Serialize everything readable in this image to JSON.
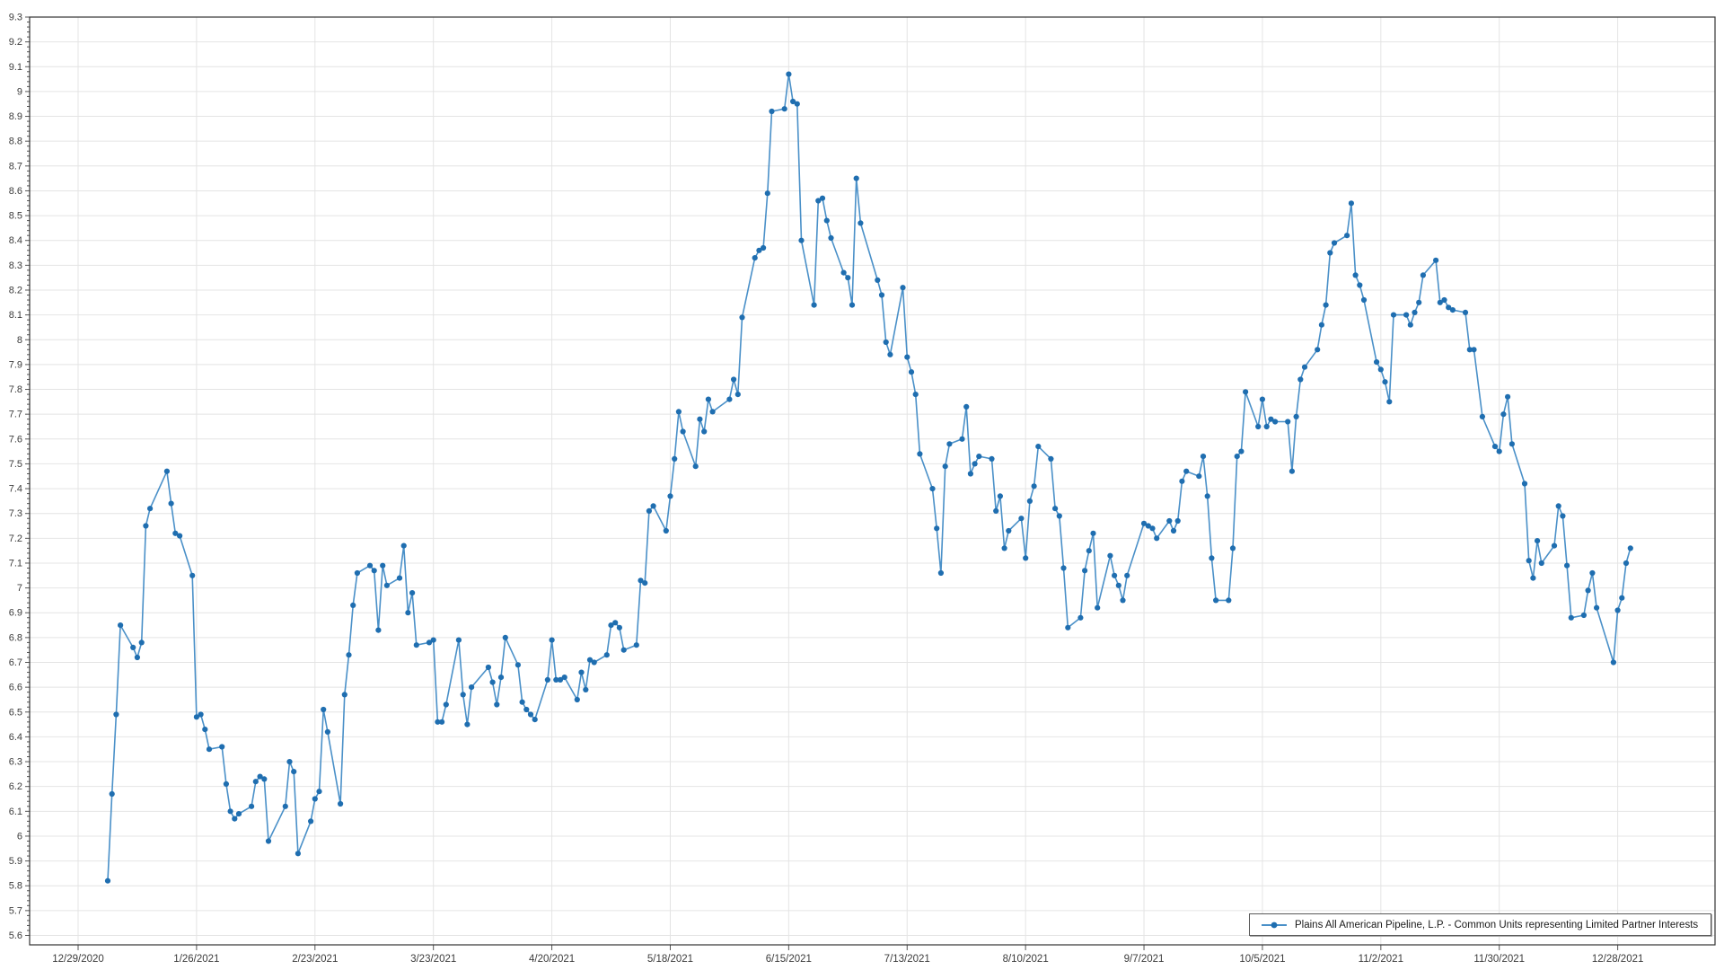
{
  "chart_data": {
    "type": "line",
    "title": "",
    "xlabel": "",
    "ylabel": "",
    "ylim": [
      5.6,
      9.3
    ],
    "ytick_step": 0.1,
    "ytick_minor_step": 0.02,
    "grid": true,
    "legend_position": "bottom-right",
    "x_base_date": "12/29/2020",
    "xtick_labels": [
      "12/29/2020",
      "1/26/2021",
      "2/23/2021",
      "3/23/2021",
      "4/20/2021",
      "5/18/2021",
      "6/15/2021",
      "7/13/2021",
      "8/10/2021",
      "9/7/2021",
      "10/5/2021",
      "11/2/2021",
      "11/30/2021",
      "12/28/2021"
    ],
    "series": [
      {
        "name": "Plains All American Pipeline, L.P. - Common Units representing Limited Partner Interests",
        "color": "#4a90c8",
        "marker_color": "#1f6eb0",
        "points": [
          [
            "1/5/2021",
            5.82
          ],
          [
            "1/6/2021",
            6.17
          ],
          [
            "1/7/2021",
            6.49
          ],
          [
            "1/8/2021",
            6.85
          ],
          [
            "1/11/2021",
            6.76
          ],
          [
            "1/12/2021",
            6.72
          ],
          [
            "1/13/2021",
            6.78
          ],
          [
            "1/14/2021",
            7.25
          ],
          [
            "1/15/2021",
            7.32
          ],
          [
            "1/19/2021",
            7.47
          ],
          [
            "1/20/2021",
            7.34
          ],
          [
            "1/21/2021",
            7.22
          ],
          [
            "1/22/2021",
            7.21
          ],
          [
            "1/25/2021",
            7.05
          ],
          [
            "1/26/2021",
            6.48
          ],
          [
            "1/27/2021",
            6.49
          ],
          [
            "1/28/2021",
            6.43
          ],
          [
            "1/29/2021",
            6.35
          ],
          [
            "2/1/2021",
            6.36
          ],
          [
            "2/2/2021",
            6.21
          ],
          [
            "2/3/2021",
            6.1
          ],
          [
            "2/4/2021",
            6.07
          ],
          [
            "2/5/2021",
            6.09
          ],
          [
            "2/8/2021",
            6.12
          ],
          [
            "2/9/2021",
            6.22
          ],
          [
            "2/10/2021",
            6.24
          ],
          [
            "2/11/2021",
            6.23
          ],
          [
            "2/12/2021",
            5.98
          ],
          [
            "2/16/2021",
            6.12
          ],
          [
            "2/17/2021",
            6.3
          ],
          [
            "2/18/2021",
            6.26
          ],
          [
            "2/19/2021",
            5.93
          ],
          [
            "2/22/2021",
            6.06
          ],
          [
            "2/23/2021",
            6.15
          ],
          [
            "2/24/2021",
            6.18
          ],
          [
            "2/25/2021",
            6.51
          ],
          [
            "2/26/2021",
            6.42
          ],
          [
            "3/1/2021",
            6.13
          ],
          [
            "3/2/2021",
            6.57
          ],
          [
            "3/3/2021",
            6.73
          ],
          [
            "3/4/2021",
            6.93
          ],
          [
            "3/5/2021",
            7.06
          ],
          [
            "3/8/2021",
            7.09
          ],
          [
            "3/9/2021",
            7.07
          ],
          [
            "3/10/2021",
            6.83
          ],
          [
            "3/11/2021",
            7.09
          ],
          [
            "3/12/2021",
            7.01
          ],
          [
            "3/15/2021",
            7.04
          ],
          [
            "3/16/2021",
            7.17
          ],
          [
            "3/17/2021",
            6.9
          ],
          [
            "3/18/2021",
            6.98
          ],
          [
            "3/19/2021",
            6.77
          ],
          [
            "3/22/2021",
            6.78
          ],
          [
            "3/23/2021",
            6.79
          ],
          [
            "3/24/2021",
            6.46
          ],
          [
            "3/25/2021",
            6.46
          ],
          [
            "3/26/2021",
            6.53
          ],
          [
            "3/29/2021",
            6.79
          ],
          [
            "3/30/2021",
            6.57
          ],
          [
            "3/31/2021",
            6.45
          ],
          [
            "4/1/2021",
            6.6
          ],
          [
            "4/5/2021",
            6.68
          ],
          [
            "4/6/2021",
            6.62
          ],
          [
            "4/7/2021",
            6.53
          ],
          [
            "4/8/2021",
            6.64
          ],
          [
            "4/9/2021",
            6.8
          ],
          [
            "4/12/2021",
            6.69
          ],
          [
            "4/13/2021",
            6.54
          ],
          [
            "4/14/2021",
            6.51
          ],
          [
            "4/15/2021",
            6.49
          ],
          [
            "4/16/2021",
            6.47
          ],
          [
            "4/19/2021",
            6.63
          ],
          [
            "4/20/2021",
            6.79
          ],
          [
            "4/21/2021",
            6.63
          ],
          [
            "4/22/2021",
            6.63
          ],
          [
            "4/23/2021",
            6.64
          ],
          [
            "4/26/2021",
            6.55
          ],
          [
            "4/27/2021",
            6.66
          ],
          [
            "4/28/2021",
            6.59
          ],
          [
            "4/29/2021",
            6.71
          ],
          [
            "4/30/2021",
            6.7
          ],
          [
            "5/3/2021",
            6.73
          ],
          [
            "5/4/2021",
            6.85
          ],
          [
            "5/5/2021",
            6.86
          ],
          [
            "5/6/2021",
            6.84
          ],
          [
            "5/7/2021",
            6.75
          ],
          [
            "5/10/2021",
            6.77
          ],
          [
            "5/11/2021",
            7.03
          ],
          [
            "5/12/2021",
            7.02
          ],
          [
            "5/13/2021",
            7.31
          ],
          [
            "5/14/2021",
            7.33
          ],
          [
            "5/17/2021",
            7.23
          ],
          [
            "5/18/2021",
            7.37
          ],
          [
            "5/19/2021",
            7.52
          ],
          [
            "5/20/2021",
            7.71
          ],
          [
            "5/21/2021",
            7.63
          ],
          [
            "5/24/2021",
            7.49
          ],
          [
            "5/25/2021",
            7.68
          ],
          [
            "5/26/2021",
            7.63
          ],
          [
            "5/27/2021",
            7.76
          ],
          [
            "5/28/2021",
            7.71
          ],
          [
            "6/1/2021",
            7.76
          ],
          [
            "6/2/2021",
            7.84
          ],
          [
            "6/3/2021",
            7.78
          ],
          [
            "6/4/2021",
            8.09
          ],
          [
            "6/7/2021",
            8.33
          ],
          [
            "6/8/2021",
            8.36
          ],
          [
            "6/9/2021",
            8.37
          ],
          [
            "6/10/2021",
            8.59
          ],
          [
            "6/11/2021",
            8.92
          ],
          [
            "6/14/2021",
            8.93
          ],
          [
            "6/15/2021",
            9.07
          ],
          [
            "6/16/2021",
            8.96
          ],
          [
            "6/17/2021",
            8.95
          ],
          [
            "6/18/2021",
            8.4
          ],
          [
            "6/21/2021",
            8.14
          ],
          [
            "6/22/2021",
            8.56
          ],
          [
            "6/23/2021",
            8.57
          ],
          [
            "6/24/2021",
            8.48
          ],
          [
            "6/25/2021",
            8.41
          ],
          [
            "6/28/2021",
            8.27
          ],
          [
            "6/29/2021",
            8.25
          ],
          [
            "6/30/2021",
            8.14
          ],
          [
            "7/1/2021",
            8.65
          ],
          [
            "7/2/2021",
            8.47
          ],
          [
            "7/6/2021",
            8.24
          ],
          [
            "7/7/2021",
            8.18
          ],
          [
            "7/8/2021",
            7.99
          ],
          [
            "7/9/2021",
            7.94
          ],
          [
            "7/12/2021",
            8.21
          ],
          [
            "7/13/2021",
            7.93
          ],
          [
            "7/14/2021",
            7.87
          ],
          [
            "7/15/2021",
            7.78
          ],
          [
            "7/16/2021",
            7.54
          ],
          [
            "7/19/2021",
            7.4
          ],
          [
            "7/20/2021",
            7.24
          ],
          [
            "7/21/2021",
            7.06
          ],
          [
            "7/22/2021",
            7.49
          ],
          [
            "7/23/2021",
            7.58
          ],
          [
            "7/26/2021",
            7.6
          ],
          [
            "7/27/2021",
            7.73
          ],
          [
            "7/28/2021",
            7.46
          ],
          [
            "7/29/2021",
            7.5
          ],
          [
            "7/30/2021",
            7.53
          ],
          [
            "8/2/2021",
            7.52
          ],
          [
            "8/3/2021",
            7.31
          ],
          [
            "8/4/2021",
            7.37
          ],
          [
            "8/5/2021",
            7.16
          ],
          [
            "8/6/2021",
            7.23
          ],
          [
            "8/9/2021",
            7.28
          ],
          [
            "8/10/2021",
            7.12
          ],
          [
            "8/11/2021",
            7.35
          ],
          [
            "8/12/2021",
            7.41
          ],
          [
            "8/13/2021",
            7.57
          ],
          [
            "8/16/2021",
            7.52
          ],
          [
            "8/17/2021",
            7.32
          ],
          [
            "8/18/2021",
            7.29
          ],
          [
            "8/19/2021",
            7.08
          ],
          [
            "8/20/2021",
            6.84
          ],
          [
            "8/23/2021",
            6.88
          ],
          [
            "8/24/2021",
            7.07
          ],
          [
            "8/25/2021",
            7.15
          ],
          [
            "8/26/2021",
            7.22
          ],
          [
            "8/27/2021",
            6.92
          ],
          [
            "8/30/2021",
            7.13
          ],
          [
            "8/31/2021",
            7.05
          ],
          [
            "9/1/2021",
            7.01
          ],
          [
            "9/2/2021",
            6.95
          ],
          [
            "9/3/2021",
            7.05
          ],
          [
            "9/7/2021",
            7.26
          ],
          [
            "9/8/2021",
            7.25
          ],
          [
            "9/9/2021",
            7.24
          ],
          [
            "9/10/2021",
            7.2
          ],
          [
            "9/13/2021",
            7.27
          ],
          [
            "9/14/2021",
            7.23
          ],
          [
            "9/15/2021",
            7.27
          ],
          [
            "9/16/2021",
            7.43
          ],
          [
            "9/17/2021",
            7.47
          ],
          [
            "9/20/2021",
            7.45
          ],
          [
            "9/21/2021",
            7.53
          ],
          [
            "9/22/2021",
            7.37
          ],
          [
            "9/23/2021",
            7.12
          ],
          [
            "9/24/2021",
            6.95
          ],
          [
            "9/27/2021",
            6.95
          ],
          [
            "9/28/2021",
            7.16
          ],
          [
            "9/29/2021",
            7.53
          ],
          [
            "9/30/2021",
            7.55
          ],
          [
            "10/1/2021",
            7.79
          ],
          [
            "10/4/2021",
            7.65
          ],
          [
            "10/5/2021",
            7.76
          ],
          [
            "10/6/2021",
            7.65
          ],
          [
            "10/7/2021",
            7.68
          ],
          [
            "10/8/2021",
            7.67
          ],
          [
            "10/11/2021",
            7.67
          ],
          [
            "10/12/2021",
            7.47
          ],
          [
            "10/13/2021",
            7.69
          ],
          [
            "10/14/2021",
            7.84
          ],
          [
            "10/15/2021",
            7.89
          ],
          [
            "10/18/2021",
            7.96
          ],
          [
            "10/19/2021",
            8.06
          ],
          [
            "10/20/2021",
            8.14
          ],
          [
            "10/21/2021",
            8.35
          ],
          [
            "10/22/2021",
            8.39
          ],
          [
            "10/25/2021",
            8.42
          ],
          [
            "10/26/2021",
            8.55
          ],
          [
            "10/27/2021",
            8.26
          ],
          [
            "10/28/2021",
            8.22
          ],
          [
            "10/29/2021",
            8.16
          ],
          [
            "11/1/2021",
            7.91
          ],
          [
            "11/2/2021",
            7.88
          ],
          [
            "11/3/2021",
            7.83
          ],
          [
            "11/4/2021",
            7.75
          ],
          [
            "11/5/2021",
            8.1
          ],
          [
            "11/8/2021",
            8.1
          ],
          [
            "11/9/2021",
            8.06
          ],
          [
            "11/10/2021",
            8.11
          ],
          [
            "11/11/2021",
            8.15
          ],
          [
            "11/12/2021",
            8.26
          ],
          [
            "11/15/2021",
            8.32
          ],
          [
            "11/16/2021",
            8.15
          ],
          [
            "11/17/2021",
            8.16
          ],
          [
            "11/18/2021",
            8.13
          ],
          [
            "11/19/2021",
            8.12
          ],
          [
            "11/22/2021",
            8.11
          ],
          [
            "11/23/2021",
            7.96
          ],
          [
            "11/24/2021",
            7.96
          ],
          [
            "11/26/2021",
            7.69
          ],
          [
            "11/29/2021",
            7.57
          ],
          [
            "11/30/2021",
            7.55
          ],
          [
            "12/1/2021",
            7.7
          ],
          [
            "12/2/2021",
            7.77
          ],
          [
            "12/3/2021",
            7.58
          ],
          [
            "12/6/2021",
            7.42
          ],
          [
            "12/7/2021",
            7.11
          ],
          [
            "12/8/2021",
            7.04
          ],
          [
            "12/9/2021",
            7.19
          ],
          [
            "12/10/2021",
            7.1
          ],
          [
            "12/13/2021",
            7.17
          ],
          [
            "12/14/2021",
            7.33
          ],
          [
            "12/15/2021",
            7.29
          ],
          [
            "12/16/2021",
            7.09
          ],
          [
            "12/17/2021",
            6.88
          ],
          [
            "12/20/2021",
            6.89
          ],
          [
            "12/21/2021",
            6.99
          ],
          [
            "12/22/2021",
            7.06
          ],
          [
            "12/23/2021",
            6.92
          ],
          [
            "12/27/2021",
            6.7
          ],
          [
            "12/28/2021",
            6.91
          ],
          [
            "12/29/2021",
            6.96
          ],
          [
            "12/30/2021",
            7.1
          ],
          [
            "12/31/2021",
            7.16
          ]
        ]
      }
    ]
  },
  "legend": {
    "label": "Plains All American Pipeline, L.P. - Common Units representing Limited Partner Interests"
  },
  "style": {
    "grid_color": "#e4e4e4",
    "axis_color": "#333333",
    "tick_color": "#555555",
    "tick_label_color": "#3c3c3c",
    "background": "#ffffff"
  }
}
